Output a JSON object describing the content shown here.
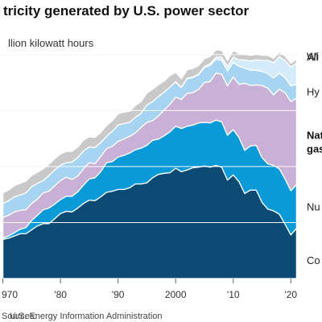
{
  "chart_data": {
    "type": "area",
    "stacked": true,
    "title": "tricity generated by U.S. power sector",
    "unit_label": "llion kilowatt hours",
    "source": "U.S. Energy Information Administration",
    "x_tick_labels": [
      "970",
      "'80",
      "'90",
      "2000",
      "'10",
      "'20"
    ],
    "x_tick_values": [
      1970,
      1980,
      1990,
      2000,
      2010,
      2020
    ],
    "xlim": [
      1969.5,
      2021.5
    ],
    "ylim": [
      0,
      4400
    ],
    "gridlines": [
      1000,
      2000,
      3000,
      4000
    ],
    "x": [
      1970,
      1971,
      1972,
      1973,
      1974,
      1975,
      1976,
      1977,
      1978,
      1979,
      1980,
      1981,
      1982,
      1983,
      1984,
      1985,
      1986,
      1987,
      1988,
      1989,
      1990,
      1991,
      1992,
      1993,
      1994,
      1995,
      1996,
      1997,
      1998,
      1999,
      2000,
      2001,
      2002,
      2003,
      2004,
      2005,
      2006,
      2007,
      2008,
      2009,
      2010,
      2011,
      2012,
      2013,
      2014,
      2015,
      2016,
      2017,
      2018,
      2019,
      2020,
      2021
    ],
    "series": [
      {
        "name": "Coal",
        "label_text": "Co",
        "color": "#0a4a73",
        "values": [
          700,
          720,
          760,
          800,
          800,
          870,
          940,
          980,
          980,
          1070,
          1160,
          1200,
          1190,
          1260,
          1340,
          1400,
          1390,
          1460,
          1540,
          1560,
          1590,
          1590,
          1620,
          1690,
          1690,
          1710,
          1800,
          1860,
          1880,
          1890,
          1970,
          1910,
          1940,
          1980,
          1990,
          2010,
          1990,
          2020,
          1990,
          1760,
          1850,
          1730,
          1520,
          1580,
          1580,
          1360,
          1240,
          1210,
          1150,
          970,
          780,
          900
        ]
      },
      {
        "name": "Nuclear",
        "label_text": "Nu",
        "color": "#0b9ad8",
        "values": [
          20,
          40,
          60,
          80,
          110,
          170,
          190,
          250,
          280,
          260,
          250,
          270,
          280,
          290,
          330,
          380,
          410,
          450,
          530,
          530,
          580,
          610,
          620,
          610,
          640,
          670,
          670,
          630,
          670,
          730,
          750,
          770,
          780,
          760,
          790,
          780,
          790,
          810,
          810,
          800,
          810,
          790,
          770,
          790,
          800,
          800,
          810,
          810,
          810,
          810,
          790,
          780
        ]
      },
      {
        "name": "Natural gas",
        "label_text": [
          "Nat",
          "gas"
        ],
        "color": "#c8b0d6",
        "values": [
          370,
          370,
          370,
          340,
          320,
          300,
          290,
          300,
          300,
          330,
          340,
          340,
          300,
          280,
          290,
          290,
          250,
          270,
          250,
          270,
          280,
          290,
          300,
          300,
          370,
          410,
          350,
          410,
          460,
          490,
          520,
          520,
          590,
          580,
          600,
          710,
          740,
          840,
          850,
          880,
          940,
          950,
          1200,
          1080,
          1080,
          1290,
          1350,
          1260,
          1420,
          1540,
          1590,
          1540
        ]
      },
      {
        "name": "Hydro",
        "label_text": "Hy",
        "color": "#a6d4f2",
        "values": [
          250,
          260,
          270,
          270,
          300,
          300,
          280,
          220,
          280,
          280,
          275,
          260,
          310,
          330,
          320,
          280,
          290,
          250,
          220,
          270,
          290,
          280,
          250,
          280,
          250,
          310,
          340,
          350,
          320,
          310,
          270,
          210,
          260,
          270,
          260,
          270,
          290,
          250,
          250,
          270,
          260,
          320,
          270,
          270,
          260,
          250,
          260,
          300,
          290,
          270,
          280,
          250
        ]
      },
      {
        "name": "Wind & solar",
        "label_text": "Wi",
        "color": "#d3ebfa",
        "values": [
          0,
          0,
          0,
          0,
          0,
          0,
          0,
          0,
          0,
          0,
          0,
          0,
          0,
          0,
          0,
          0,
          0,
          0,
          0,
          0,
          0,
          0,
          0,
          0,
          0,
          0,
          0,
          0,
          0,
          0,
          6,
          6,
          10,
          11,
          14,
          18,
          26,
          34,
          55,
          74,
          95,
          120,
          141,
          167,
          186,
          198,
          236,
          272,
          293,
          308,
          335,
          380
        ]
      },
      {
        "name": "All other",
        "label_text": "All",
        "color": "#c9c9c9",
        "values": [
          190,
          190,
          200,
          210,
          210,
          200,
          200,
          210,
          200,
          200,
          200,
          200,
          190,
          190,
          190,
          180,
          180,
          180,
          190,
          190,
          200,
          200,
          200,
          210,
          210,
          210,
          220,
          210,
          200,
          200,
          170,
          150,
          150,
          150,
          150,
          140,
          130,
          130,
          120,
          110,
          120,
          110,
          100,
          100,
          100,
          90,
          90,
          80,
          80,
          80,
          70,
          70
        ]
      }
    ]
  }
}
